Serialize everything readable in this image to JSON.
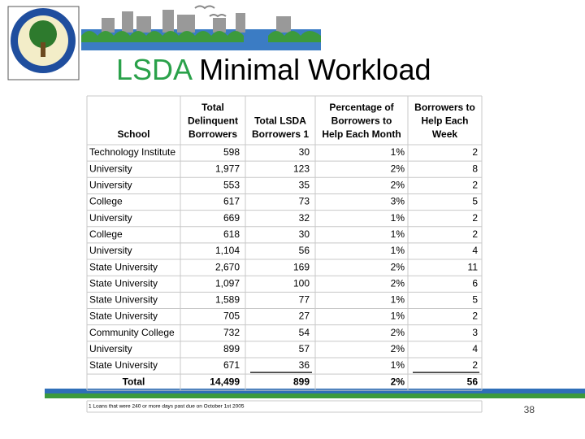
{
  "header": {
    "title_accent": "LSDA",
    "title_rest": "Minimal Workload"
  },
  "table": {
    "columns": [
      "School",
      "Total Delinquent Borrowers",
      "Total LSDA Borrowers 1",
      "Percentage of Borrowers to Help Each Month",
      "Borrowers to Help Each Week"
    ],
    "rows": [
      [
        "Technology Institute",
        "598",
        "30",
        "1%",
        "2"
      ],
      [
        "University",
        "1,977",
        "123",
        "2%",
        "8"
      ],
      [
        "University",
        "553",
        "35",
        "2%",
        "2"
      ],
      [
        "College",
        "617",
        "73",
        "3%",
        "5"
      ],
      [
        "University",
        "669",
        "32",
        "1%",
        "2"
      ],
      [
        "College",
        "618",
        "30",
        "1%",
        "2"
      ],
      [
        "University",
        "1,104",
        "56",
        "1%",
        "4"
      ],
      [
        "State University",
        "2,670",
        "169",
        "2%",
        "11"
      ],
      [
        "State University",
        "1,097",
        "100",
        "2%",
        "6"
      ],
      [
        "State University",
        "1,589",
        "77",
        "1%",
        "5"
      ],
      [
        "State University",
        "705",
        "27",
        "1%",
        "2"
      ],
      [
        "Community College",
        "732",
        "54",
        "2%",
        "3"
      ],
      [
        "University",
        "899",
        "57",
        "2%",
        "4"
      ],
      [
        "State University",
        "671",
        "36",
        "1%",
        "2"
      ]
    ],
    "total": [
      "Total",
      "14,499",
      "899",
      "2%",
      "56"
    ],
    "footnote": "1 Loans that were 240 or more days past due on October 1st 2005"
  },
  "page_number": "38"
}
